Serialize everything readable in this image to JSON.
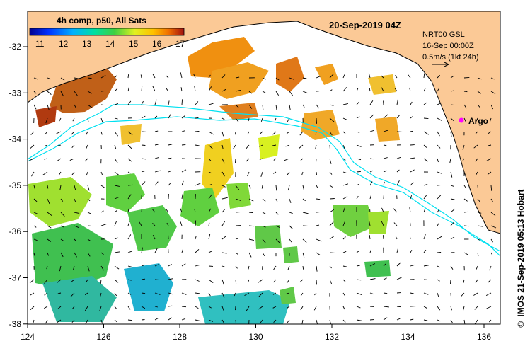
{
  "colorbar": {
    "title": "4h comp, p50, All Sats",
    "ticks": [
      "11",
      "12",
      "13",
      "14",
      "15",
      "16",
      "17"
    ]
  },
  "timestamp": "20-Sep-2019 04Z",
  "legend": {
    "line1": "NRT00 GSL",
    "line2": "16-Sep 00:00Z",
    "line3": "0.5m/s (1kt 24h)"
  },
  "argo_label": "Argo",
  "credit": "© IMOS 21-Sep-2019 05:13 Hobart",
  "axes": {
    "x_ticks": [
      "124",
      "126",
      "128",
      "130",
      "132",
      "134",
      "136"
    ],
    "y_ticks": [
      "-32",
      "-33",
      "-34",
      "-35",
      "-36",
      "-37",
      "-38"
    ]
  },
  "colors": {
    "land": "#fbc996",
    "contour": "#00e0f0",
    "argo": "#ff00ff"
  }
}
